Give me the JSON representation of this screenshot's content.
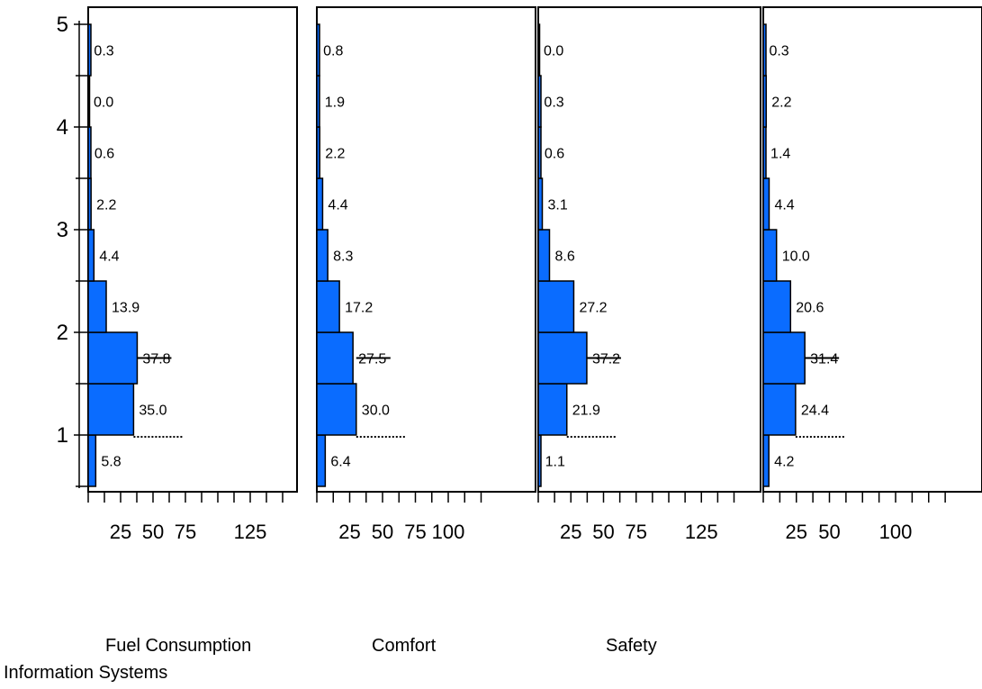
{
  "chart_data": {
    "type": "bar",
    "orientation": "horizontal",
    "bar_color": "#0a6cff",
    "bins": [
      0.5,
      1.0,
      1.5,
      2.0,
      2.5,
      3.0,
      3.5,
      4.0,
      4.5,
      5.0
    ],
    "y_ticks": [
      "1",
      "2",
      "3",
      "4",
      "5"
    ],
    "ylim": [
      0.5,
      5.0
    ],
    "grid": false,
    "panels": [
      {
        "title": "Fuel Consumption",
        "values": [
          5.8,
          35.0,
          37.8,
          13.9,
          4.4,
          2.2,
          0.6,
          0.0,
          0.3
        ],
        "labels": [
          "5.8",
          "35.0",
          "37.8",
          "13.9",
          "4.4",
          "2.2",
          "0.6",
          "0.0",
          "0.3"
        ],
        "xlim": [
          0,
          162
        ],
        "x_ticks": [
          12.5,
          25,
          37.5,
          50,
          62.5,
          75,
          87.5,
          100,
          112.5,
          125,
          137.5,
          150
        ],
        "tick_labels": [
          {
            "text": "25",
            "x": 25
          },
          {
            "text": "50",
            "x": 50
          },
          {
            "text": "75",
            "x": 75
          },
          {
            "text": "125",
            "x": 125
          }
        ],
        "median": 1.75,
        "mean": 1.0
      },
      {
        "title": "Comfort",
        "values": [
          6.4,
          30.0,
          27.5,
          17.2,
          8.3,
          4.4,
          2.2,
          1.9,
          0.8
        ],
        "labels": [
          "6.4",
          "30.0",
          "27.5",
          "17.2",
          "8.3",
          "4.4",
          "2.2",
          "1.9",
          "0.8"
        ],
        "xlim": [
          0,
          132
        ],
        "x_ticks": [
          12.5,
          25,
          37.5,
          50,
          62.5,
          75,
          87.5,
          100,
          112.5,
          125
        ],
        "tick_labels": [
          {
            "text": "25",
            "x": 25
          },
          {
            "text": "50",
            "x": 50
          },
          {
            "text": "75",
            "x": 75
          },
          {
            "text": "100",
            "x": 100
          }
        ],
        "median": 1.75,
        "mean": 1.0
      },
      {
        "title": "Safety",
        "values": [
          1.1,
          21.9,
          37.2,
          27.2,
          8.6,
          3.1,
          0.6,
          0.3,
          0.0
        ],
        "labels": [
          "1.1",
          "21.9",
          "37.2",
          "27.2",
          "8.6",
          "3.1",
          "0.6",
          "0.3",
          "0.0"
        ],
        "xlim": [
          0,
          162
        ],
        "x_ticks": [
          12.5,
          25,
          37.5,
          50,
          62.5,
          75,
          87.5,
          100,
          112.5,
          125,
          137.5,
          150
        ],
        "tick_labels": [
          {
            "text": "25",
            "x": 25
          },
          {
            "text": "50",
            "x": 50
          },
          {
            "text": "75",
            "x": 75
          },
          {
            "text": "125",
            "x": 125
          }
        ],
        "median": 1.75,
        "mean": 1.0
      },
      {
        "title": "Information Systems",
        "values": [
          4.2,
          24.4,
          31.4,
          20.6,
          10.0,
          4.4,
          1.4,
          2.2,
          0.3
        ],
        "labels": [
          "4.2",
          "24.4",
          "31.4",
          "20.6",
          "10.0",
          "4.4",
          "1.4",
          "2.2",
          "0.3"
        ],
        "xlim": [
          0,
          142
        ],
        "x_ticks": [
          12.5,
          25,
          37.5,
          50,
          62.5,
          75,
          87.5,
          100,
          112.5,
          125,
          137.5
        ],
        "tick_labels": [
          {
            "text": "25",
            "x": 25
          },
          {
            "text": "50",
            "x": 50
          },
          {
            "text": "100",
            "x": 100
          }
        ],
        "median": 1.75,
        "mean": 1.0
      }
    ]
  }
}
